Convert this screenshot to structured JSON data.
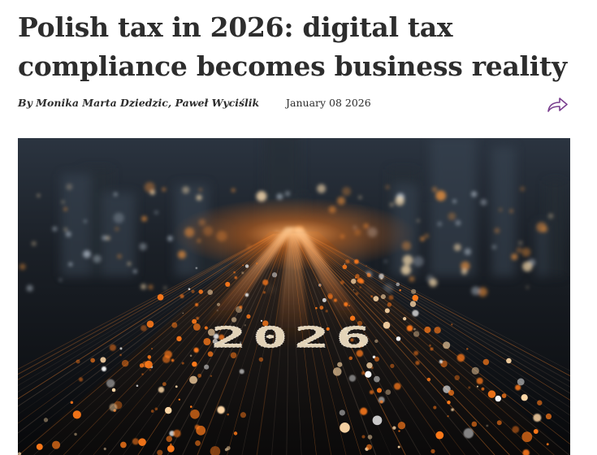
{
  "article": {
    "title": "Polish tax in 2026: digital tax compliance becomes business reality",
    "byline": "By Monika Marta Dziedzic, Paweł Wyciślik",
    "date": "January 08 2026"
  },
  "share": {
    "icon": "share-arrow-icon",
    "color": "#7a3f8f"
  },
  "hero_image": {
    "text": "2026"
  },
  "colors": {
    "text": "#2d2d2d",
    "accent": "#7a3f8f",
    "glow": "#ff7a1a"
  }
}
